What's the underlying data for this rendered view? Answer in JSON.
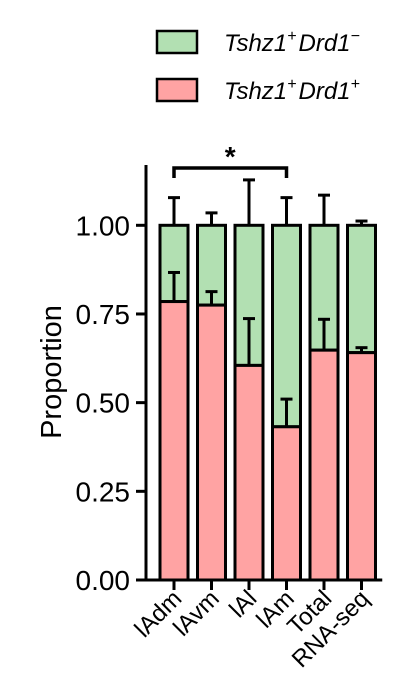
{
  "chart_data": {
    "type": "bar",
    "stacked": true,
    "categories": [
      "lAdm",
      "lAvm",
      "lAl",
      "lAm",
      "Total",
      "RNA-seq"
    ],
    "series": [
      {
        "name_main": "Tshz1",
        "name_sup1": "+",
        "name_second": "Drd1",
        "name_sup2": "+",
        "color": "#ffa3a3",
        "values": [
          0.785,
          0.775,
          0.605,
          0.432,
          0.648,
          0.641
        ],
        "errors": [
          0.082,
          0.038,
          0.132,
          0.078,
          0.087,
          0.014
        ]
      },
      {
        "name_main": "Tshz1",
        "name_sup1": "+",
        "name_second": "Drd1",
        "name_sup2": "−",
        "color": "#b2e0b2",
        "values": [
          0.215,
          0.225,
          0.395,
          0.568,
          0.352,
          0.359
        ],
        "errors": [
          0.078,
          0.035,
          0.128,
          0.078,
          0.085,
          0.012
        ]
      }
    ],
    "ylabel": "Proportion",
    "xlabel": "",
    "ylim": [
      0,
      1.17
    ],
    "yticks": [
      "0.00",
      "0.25",
      "0.50",
      "0.75",
      "1.00"
    ],
    "significance": {
      "from": 0,
      "to": 3,
      "label": "*"
    },
    "legend_position": "top"
  }
}
